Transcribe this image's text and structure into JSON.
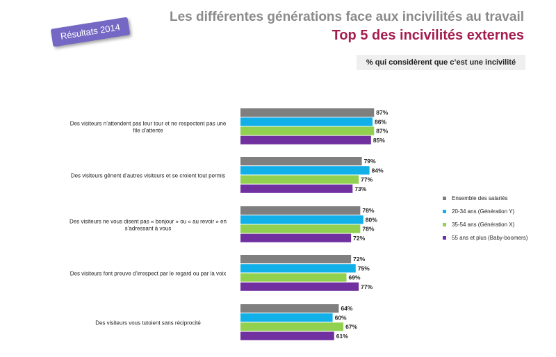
{
  "badge": "Résultats 2014",
  "chart_data": {
    "type": "bar",
    "orientation": "horizontal",
    "title": "Les différentes générations face aux incivilités au travail",
    "subtitle": "Top 5 des incivilités externes",
    "note": "% qui considèrent que c’est une incivilité",
    "categories": [
      [
        "Des visiteurs n’attendent pas leur tour et ne respectent pas une",
        "file d’attente"
      ],
      [
        "Des visiteurs gênent d’autres visiteurs et se croient tout permis"
      ],
      [
        "Des visiteurs ne vous disent pas « bonjour » ou « au revoir » en",
        "s’adressant à vous"
      ],
      [
        "Des visiteurs font preuve d’irrespect par le regard ou par la voix"
      ],
      [
        "Des visiteurs vous tutoient sans réciprocité"
      ]
    ],
    "series": [
      {
        "name": "Ensemble des salariés",
        "color": "#7f7f7f",
        "values": [
          87,
          79,
          78,
          72,
          64
        ]
      },
      {
        "name": "20-34 ans (Génération Y)",
        "color": "#12b0e8",
        "values": [
          86,
          84,
          80,
          75,
          60
        ]
      },
      {
        "name": "35-54 ans (Génération X)",
        "color": "#92d050",
        "values": [
          87,
          77,
          78,
          69,
          67
        ]
      },
      {
        "name": "55 ans et plus (Baby-boomers)",
        "color": "#7030a0",
        "values": [
          85,
          73,
          72,
          77,
          61
        ]
      }
    ],
    "value_suffix": "%",
    "xlim": [
      0,
      100
    ],
    "grid": false,
    "legend_position": "right"
  }
}
